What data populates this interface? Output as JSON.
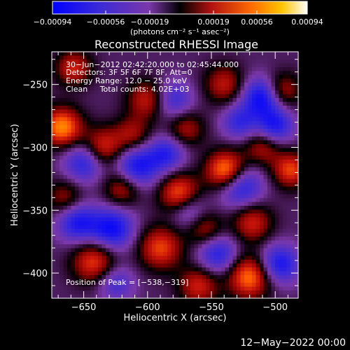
{
  "chart_data": {
    "type": "heatmap",
    "title": "Reconstructed RHESSI Image",
    "xlabel": "Heliocentric X (arcsec)",
    "ylabel": "Heliocentric Y (arcsec)",
    "xlim": [
      -675,
      -482
    ],
    "ylim": [
      -420,
      -224
    ],
    "x_ticks": [
      -650,
      -600,
      -550,
      -500
    ],
    "y_ticks": [
      -250,
      -300,
      -350,
      -400
    ],
    "x_tick_labels": [
      "−650",
      "−600",
      "−550",
      "−500"
    ],
    "y_tick_labels": [
      "−250",
      "−300",
      "−350",
      "−400"
    ],
    "colorbar": {
      "range": [
        -0.00094,
        0.00094
      ],
      "tick_labels": [
        "−0.00094",
        "−0.00056",
        "−0.00019",
        "0.00019",
        "0.00056",
        "0.00094"
      ],
      "units": "(photons cm⁻² s⁻¹ asec⁻²)"
    },
    "annotations": [
      "30−Jun−2012 02:42:20.000 to 02:45:44.000",
      "Detectors: 3F 5F 6F 7F 8F, Att=0",
      "Energy Range: 12.0 − 25.0 keV",
      "Clean     Total counts: 4.02E+03"
    ],
    "peak_text": "Position of Peak = [−538,−319]",
    "peak_position": [
      -538,
      -319
    ],
    "footer_date": "12−May−2022 00:00",
    "sources": [
      {
        "x": -538,
        "y": -319,
        "amp": 1.0,
        "s": 11
      },
      {
        "x": -667,
        "y": -284,
        "amp": 0.85,
        "s": 11
      },
      {
        "x": -642,
        "y": -391,
        "amp": 0.65,
        "s": 12
      },
      {
        "x": -658,
        "y": -237,
        "amp": 0.55,
        "s": 10
      },
      {
        "x": -635,
        "y": -300,
        "amp": 0.6,
        "s": 11
      },
      {
        "x": -620,
        "y": -333,
        "amp": 0.5,
        "s": 10
      },
      {
        "x": -575,
        "y": -337,
        "amp": 0.75,
        "s": 11
      },
      {
        "x": -590,
        "y": -380,
        "amp": 0.65,
        "s": 12
      },
      {
        "x": -560,
        "y": -410,
        "amp": 0.55,
        "s": 11
      },
      {
        "x": -520,
        "y": -403,
        "amp": 0.8,
        "s": 12
      },
      {
        "x": -518,
        "y": -360,
        "amp": 0.55,
        "s": 11
      },
      {
        "x": -488,
        "y": -318,
        "amp": 0.65,
        "s": 10
      },
      {
        "x": -495,
        "y": -255,
        "amp": 0.55,
        "s": 10
      },
      {
        "x": -510,
        "y": -300,
        "amp": 0.45,
        "s": 10
      },
      {
        "x": -540,
        "y": -250,
        "amp": 0.5,
        "s": 11
      },
      {
        "x": -600,
        "y": -262,
        "amp": 0.55,
        "s": 11
      },
      {
        "x": -612,
        "y": -290,
        "amp": 0.45,
        "s": 10
      },
      {
        "x": -570,
        "y": -285,
        "amp": 0.45,
        "s": 10
      },
      {
        "x": -555,
        "y": -365,
        "amp": 0.45,
        "s": 10
      },
      {
        "x": -665,
        "y": -340,
        "amp": 0.4,
        "s": 10
      },
      {
        "x": -628,
        "y": -365,
        "amp": -0.75,
        "s": 12
      },
      {
        "x": -655,
        "y": -360,
        "amp": -0.65,
        "s": 11
      },
      {
        "x": -650,
        "y": -312,
        "amp": -0.6,
        "s": 11
      },
      {
        "x": -608,
        "y": -315,
        "amp": -0.7,
        "s": 12
      },
      {
        "x": -585,
        "y": -305,
        "amp": -0.55,
        "s": 10
      },
      {
        "x": -580,
        "y": -262,
        "amp": -0.5,
        "s": 11
      },
      {
        "x": -510,
        "y": -260,
        "amp": -0.8,
        "s": 11
      },
      {
        "x": -500,
        "y": -283,
        "amp": -0.65,
        "s": 10
      },
      {
        "x": -528,
        "y": -330,
        "amp": -0.75,
        "s": 12
      },
      {
        "x": -497,
        "y": -393,
        "amp": -0.7,
        "s": 11
      },
      {
        "x": -545,
        "y": -385,
        "amp": -0.6,
        "s": 11
      },
      {
        "x": -568,
        "y": -350,
        "amp": -0.45,
        "s": 10
      },
      {
        "x": -625,
        "y": -408,
        "amp": -0.45,
        "s": 10
      },
      {
        "x": -528,
        "y": -280,
        "amp": -0.5,
        "s": 10
      }
    ]
  }
}
